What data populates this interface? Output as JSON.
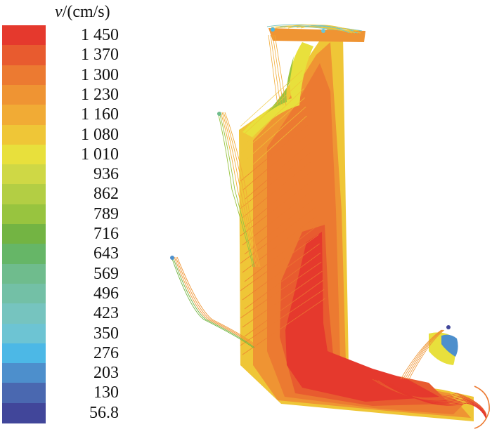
{
  "legend": {
    "title_symbol": "v",
    "title_unit": "/(cm/s)",
    "levels": [
      {
        "label": "1 450",
        "color": "#e5392d"
      },
      {
        "label": "1 370",
        "color": "#e85b2f"
      },
      {
        "label": "1 300",
        "color": "#ec7a31"
      },
      {
        "label": "1 230",
        "color": "#ef9433"
      },
      {
        "label": "1 160",
        "color": "#f1ab35"
      },
      {
        "label": "1 080",
        "color": "#efc637"
      },
      {
        "label": "1 010",
        "color": "#e8e03c"
      },
      {
        "label": "936",
        "color": "#cfd845"
      },
      {
        "label": "862",
        "color": "#b3ce44"
      },
      {
        "label": "789",
        "color": "#98c43f"
      },
      {
        "label": "716",
        "color": "#73b443"
      },
      {
        "label": "643",
        "color": "#66b667"
      },
      {
        "label": "569",
        "color": "#6fbc8d"
      },
      {
        "label": "496",
        "color": "#73c0a6"
      },
      {
        "label": "423",
        "color": "#76c4bf"
      },
      {
        "label": "350",
        "color": "#6dc4d3"
      },
      {
        "label": "276",
        "color": "#4cb8e6"
      },
      {
        "label": "203",
        "color": "#4d8fcc"
      },
      {
        "label": "130",
        "color": "#4a68b0"
      },
      {
        "label": "56.8",
        "color": "#41469a"
      }
    ]
  }
}
